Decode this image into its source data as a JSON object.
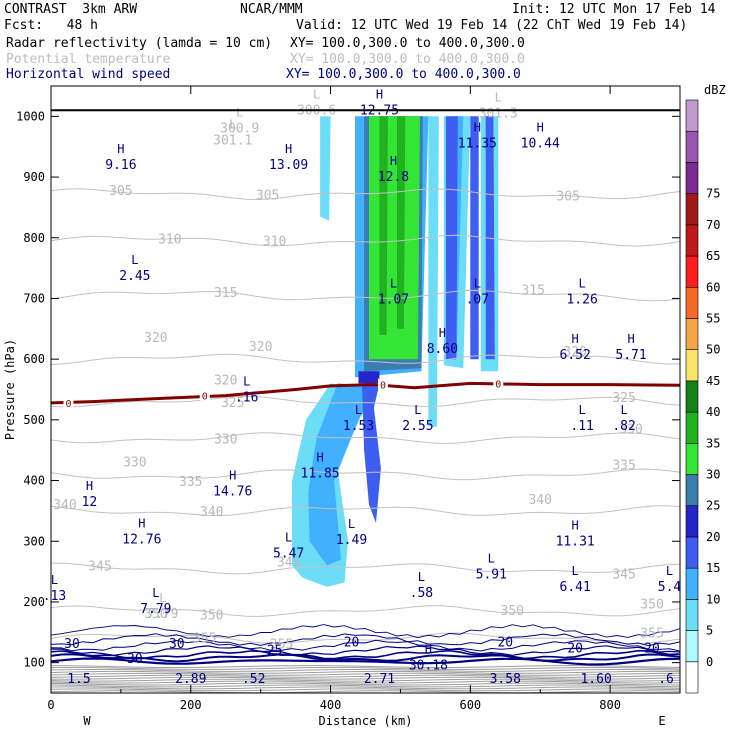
{
  "header": {
    "experiment": "CONTRAST  3km ARW",
    "institution": "NCAR/MMM",
    "init": "Init: 12 UTC Mon 17 Feb 14",
    "fcst": "Fcst:   48 h",
    "valid": "Valid: 12 UTC Wed 19 Feb 14 (22 ChT Wed 19 Feb 14)",
    "fields": [
      {
        "name": "Radar reflectivity (lamda = 10 cm)",
        "xy": "XY= 100.0,300.0 to 400.0,300.0",
        "color": "#000000"
      },
      {
        "name": "Potential temperature",
        "xy": "XY= 100.0,300.0 to 400.0,300.0",
        "color": "#bdbdbd"
      },
      {
        "name": "Horizontal wind speed",
        "xy": "XY= 100.0,300.0 to 400.0,300.0",
        "color": "#000080"
      }
    ]
  },
  "chart_data": {
    "type": "contour cross-section",
    "xlabel": "Distance (km)",
    "ylabel": "Pressure (hPa)",
    "xlim": [
      0,
      900
    ],
    "ylim": [
      1050,
      50
    ],
    "x_ticks": [
      0,
      200,
      400,
      600,
      800
    ],
    "y_ticks": [
      100,
      200,
      300,
      400,
      500,
      600,
      700,
      800,
      900,
      1000
    ],
    "x_end_labels": {
      "left": "W",
      "right": "E"
    },
    "colorbar": {
      "unit": "dBZ",
      "levels": [
        0,
        5,
        10,
        15,
        20,
        25,
        30,
        35,
        40,
        45,
        50,
        55,
        60,
        65,
        70,
        75
      ],
      "colors": [
        "#ffffff",
        "#aefaff",
        "#6bddf7",
        "#40b0ff",
        "#3d5ef0",
        "#2424c8",
        "#3c7db0",
        "#35e535",
        "#20b020",
        "#15801a",
        "#fbe36a",
        "#f4a548",
        "#f46a28",
        "#fa1e1e",
        "#c01818",
        "#a01818",
        "#7a2b92",
        "#9a55b0",
        "#c39acb"
      ]
    },
    "theta_contour_labels": [
      {
        "x": 150,
        "p": 180,
        "value": "350"
      },
      {
        "x": 230,
        "p": 178,
        "value": "350"
      },
      {
        "x": 330,
        "p": 130,
        "value": "355"
      },
      {
        "x": 220,
        "p": 140,
        "value": "355"
      },
      {
        "x": 660,
        "p": 185,
        "value": "350"
      },
      {
        "x": 860,
        "p": 196,
        "value": "350"
      },
      {
        "x": 860,
        "p": 148,
        "value": "355"
      },
      {
        "x": 820,
        "p": 245,
        "value": "345"
      },
      {
        "x": 70,
        "p": 258,
        "value": "345"
      },
      {
        "x": 340,
        "p": 265,
        "value": "345"
      },
      {
        "x": 20,
        "p": 360,
        "value": "340"
      },
      {
        "x": 230,
        "p": 348,
        "value": "340"
      },
      {
        "x": 700,
        "p": 368,
        "value": "340"
      },
      {
        "x": 200,
        "p": 398,
        "value": "335"
      },
      {
        "x": 820,
        "p": 425,
        "value": "335"
      },
      {
        "x": 120,
        "p": 430,
        "value": "330"
      },
      {
        "x": 250,
        "p": 468,
        "value": "330"
      },
      {
        "x": 830,
        "p": 484,
        "value": "330"
      },
      {
        "x": 260,
        "p": 528,
        "value": "325"
      },
      {
        "x": 820,
        "p": 536,
        "value": "325"
      },
      {
        "x": 250,
        "p": 565,
        "value": "320"
      },
      {
        "x": 150,
        "p": 635,
        "value": "320"
      },
      {
        "x": 300,
        "p": 620,
        "value": "320"
      },
      {
        "x": 750,
        "p": 612,
        "value": "320"
      },
      {
        "x": 250,
        "p": 709,
        "value": "315"
      },
      {
        "x": 690,
        "p": 713,
        "value": "315"
      },
      {
        "x": 170,
        "p": 797,
        "value": "310"
      },
      {
        "x": 320,
        "p": 794,
        "value": "310"
      },
      {
        "x": 100,
        "p": 877,
        "value": "305"
      },
      {
        "x": 310,
        "p": 870,
        "value": "305"
      },
      {
        "x": 740,
        "p": 868,
        "value": "305"
      }
    ],
    "theta_extrema": [
      {
        "type": "L",
        "x": 160,
        "p": 180,
        "value": "7.79"
      },
      {
        "type": "L",
        "x": 260,
        "p": 960,
        "value": "301.1"
      },
      {
        "type": "L",
        "x": 270,
        "p": 980,
        "value": "300.9"
      },
      {
        "type": "L",
        "x": 380,
        "p": 1010,
        "value": "300.6"
      },
      {
        "type": "L",
        "x": 640,
        "p": 1005,
        "value": "301.3"
      }
    ],
    "wind_contour_labels": [
      {
        "x": 40,
        "p": 75,
        "value": "1.5"
      },
      {
        "x": 200,
        "p": 75,
        "value": "2.89"
      },
      {
        "x": 290,
        "p": 75,
        "value": ".52"
      },
      {
        "x": 470,
        "p": 75,
        "value": "2.71"
      },
      {
        "x": 650,
        "p": 75,
        "value": "3.58"
      },
      {
        "x": 780,
        "p": 75,
        "value": "1.60"
      },
      {
        "x": 880,
        "p": 75,
        "value": ".6"
      },
      {
        "x": 120,
        "p": 108,
        "value": "30"
      },
      {
        "x": 30,
        "p": 132,
        "value": "30"
      },
      {
        "x": 180,
        "p": 132,
        "value": "30"
      },
      {
        "x": 320,
        "p": 122,
        "value": "25"
      },
      {
        "x": 430,
        "p": 135,
        "value": "20"
      },
      {
        "x": 650,
        "p": 135,
        "value": "20"
      },
      {
        "x": 750,
        "p": 125,
        "value": "20"
      },
      {
        "x": 860,
        "p": 125,
        "value": "20"
      }
    ],
    "wind_extrema": [
      {
        "type": "H",
        "x": 540,
        "p": 95,
        "value": "30.18"
      },
      {
        "type": "L",
        "x": 5,
        "p": 210,
        "value": ".13"
      },
      {
        "type": "L",
        "x": 150,
        "p": 188,
        "value": "7.79"
      },
      {
        "type": "L",
        "x": 530,
        "p": 215,
        "value": ".58"
      },
      {
        "type": "L",
        "x": 630,
        "p": 245,
        "value": "5.91"
      },
      {
        "type": "L",
        "x": 750,
        "p": 225,
        "value": "6.41"
      },
      {
        "type": "L",
        "x": 885,
        "p": 225,
        "value": "5.4"
      },
      {
        "type": "L",
        "x": 340,
        "p": 280,
        "value": "5.47"
      },
      {
        "type": "L",
        "x": 430,
        "p": 302,
        "value": "1.49"
      },
      {
        "type": "H",
        "x": 130,
        "p": 303,
        "value": "12.76"
      },
      {
        "type": "H",
        "x": 750,
        "p": 300,
        "value": "11.31"
      },
      {
        "type": "H",
        "x": 55,
        "p": 365,
        "value": "12"
      },
      {
        "type": "H",
        "x": 260,
        "p": 382,
        "value": "14.76"
      },
      {
        "type": "H",
        "x": 385,
        "p": 412,
        "value": "11.85"
      },
      {
        "type": "L",
        "x": 440,
        "p": 490,
        "value": "1.53"
      },
      {
        "type": "L",
        "x": 525,
        "p": 490,
        "value": "2.55"
      },
      {
        "type": "L",
        "x": 760,
        "p": 490,
        "value": ".11"
      },
      {
        "type": "L",
        "x": 820,
        "p": 490,
        "value": ".82"
      },
      {
        "type": "L",
        "x": 280,
        "p": 537,
        "value": ".16"
      },
      {
        "type": "H",
        "x": 560,
        "p": 617,
        "value": "8.60"
      },
      {
        "type": "H",
        "x": 750,
        "p": 607,
        "value": "6.52"
      },
      {
        "type": "H",
        "x": 830,
        "p": 607,
        "value": "5.71"
      },
      {
        "type": "L",
        "x": 490,
        "p": 698,
        "value": "1.07"
      },
      {
        "type": "L",
        "x": 610,
        "p": 698,
        "value": ".07"
      },
      {
        "type": "L",
        "x": 760,
        "p": 698,
        "value": "1.26"
      },
      {
        "type": "L",
        "x": 120,
        "p": 737,
        "value": "2.45"
      },
      {
        "type": "H",
        "x": 100,
        "p": 920,
        "value": "9.16"
      },
      {
        "type": "H",
        "x": 340,
        "p": 920,
        "value": "13.09"
      },
      {
        "type": "H",
        "x": 490,
        "p": 900,
        "value": "12.8"
      },
      {
        "type": "H",
        "x": 610,
        "p": 955,
        "value": "11.35"
      },
      {
        "type": "H",
        "x": 700,
        "p": 955,
        "value": "10.44"
      },
      {
        "type": "H",
        "x": 470,
        "p": 1010,
        "value": "12.75"
      }
    ],
    "freezing_level": {
      "label": "0",
      "points": [
        [
          0,
          528
        ],
        [
          60,
          530
        ],
        [
          150,
          535
        ],
        [
          250,
          540
        ],
        [
          350,
          550
        ],
        [
          400,
          556
        ],
        [
          460,
          558
        ],
        [
          520,
          553
        ],
        [
          600,
          560
        ],
        [
          700,
          558
        ],
        [
          800,
          558
        ],
        [
          900,
          557
        ]
      ]
    },
    "reflectivity_regions": [
      {
        "dbz": 5,
        "points": [
          [
            345,
            260
          ],
          [
            360,
            240
          ],
          [
            395,
            225
          ],
          [
            420,
            232
          ],
          [
            425,
            300
          ],
          [
            410,
            420
          ],
          [
            445,
            510
          ],
          [
            460,
            545
          ],
          [
            400,
            560
          ],
          [
            365,
            500
          ],
          [
            345,
            400
          ]
        ]
      },
      {
        "dbz": 5,
        "points": [
          [
            385,
            835
          ],
          [
            398,
            828
          ],
          [
            400,
            1000
          ],
          [
            385,
            1000
          ]
        ]
      },
      {
        "dbz": 5,
        "points": [
          [
            540,
            490
          ],
          [
            552,
            488
          ],
          [
            555,
            1000
          ],
          [
            540,
            1000
          ]
        ]
      },
      {
        "dbz": 5,
        "points": [
          [
            562,
            590
          ],
          [
            590,
            585
          ],
          [
            600,
            1000
          ],
          [
            562,
            1000
          ]
        ]
      },
      {
        "dbz": 5,
        "points": [
          [
            615,
            580
          ],
          [
            640,
            580
          ],
          [
            640,
            1000
          ],
          [
            615,
            1000
          ]
        ]
      },
      {
        "dbz": 10,
        "points": [
          [
            370,
            300
          ],
          [
            395,
            260
          ],
          [
            415,
            270
          ],
          [
            405,
            400
          ],
          [
            440,
            500
          ],
          [
            470,
            555
          ],
          [
            410,
            560
          ],
          [
            380,
            470
          ],
          [
            368,
            380
          ]
        ]
      },
      {
        "dbz": 10,
        "points": [
          [
            435,
            570
          ],
          [
            530,
            580
          ],
          [
            540,
            1000
          ],
          [
            435,
            1000
          ]
        ]
      },
      {
        "dbz": 10,
        "points": [
          [
            580,
            600
          ],
          [
            590,
            1000
          ],
          [
            575,
            1000
          ]
        ]
      },
      {
        "dbz": 15,
        "points": [
          [
            455,
            360
          ],
          [
            465,
            330
          ],
          [
            472,
            420
          ],
          [
            462,
            520
          ],
          [
            470,
            560
          ],
          [
            445,
            560
          ],
          [
            448,
            450
          ]
        ]
      },
      {
        "dbz": 15,
        "points": [
          [
            565,
            600
          ],
          [
            580,
            600
          ],
          [
            582,
            1000
          ],
          [
            565,
            1000
          ]
        ]
      },
      {
        "dbz": 15,
        "points": [
          [
            600,
            600
          ],
          [
            612,
            600
          ],
          [
            612,
            1000
          ],
          [
            600,
            1000
          ]
        ]
      },
      {
        "dbz": 15,
        "points": [
          [
            622,
            600
          ],
          [
            635,
            600
          ],
          [
            633,
            1000
          ],
          [
            622,
            1000
          ]
        ]
      },
      {
        "dbz": 20,
        "points": [
          [
            440,
            560
          ],
          [
            470,
            560
          ],
          [
            470,
            580
          ],
          [
            440,
            580
          ]
        ]
      },
      {
        "dbz": 25,
        "points": [
          [
            448,
            580
          ],
          [
            530,
            585
          ],
          [
            532,
            1000
          ],
          [
            448,
            1000
          ]
        ]
      },
      {
        "dbz": 30,
        "points": [
          [
            455,
            600
          ],
          [
            525,
            600
          ],
          [
            528,
            1000
          ],
          [
            455,
            1000
          ]
        ]
      },
      {
        "dbz": 35,
        "points": [
          [
            470,
            640
          ],
          [
            480,
            640
          ],
          [
            482,
            1000
          ],
          [
            470,
            1000
          ]
        ]
      },
      {
        "dbz": 35,
        "points": [
          [
            495,
            650
          ],
          [
            505,
            650
          ],
          [
            507,
            1000
          ],
          [
            495,
            1000
          ]
        ]
      }
    ]
  }
}
